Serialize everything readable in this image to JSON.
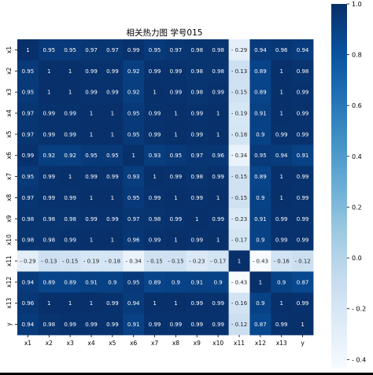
{
  "chart_data": {
    "type": "heatmap",
    "title": "相关热力图 学号015",
    "labels": [
      "x1",
      "x2",
      "x3",
      "x4",
      "x5",
      "x6",
      "x7",
      "x8",
      "x9",
      "x10",
      "x11",
      "x12",
      "x13",
      "y"
    ],
    "matrix": [
      [
        1,
        0.95,
        0.95,
        0.97,
        0.97,
        0.99,
        0.95,
        0.97,
        0.98,
        0.98,
        -0.29,
        0.94,
        0.96,
        0.94
      ],
      [
        0.95,
        1,
        1,
        0.99,
        0.99,
        0.92,
        0.99,
        0.99,
        0.98,
        0.98,
        -0.13,
        0.89,
        1,
        0.98
      ],
      [
        0.95,
        1,
        1,
        0.99,
        0.99,
        0.92,
        1,
        0.99,
        0.98,
        0.99,
        -0.15,
        0.89,
        1,
        0.99
      ],
      [
        0.97,
        0.99,
        0.99,
        1,
        1,
        0.95,
        0.99,
        1,
        0.99,
        1,
        -0.19,
        0.91,
        1,
        0.99
      ],
      [
        0.97,
        0.99,
        0.99,
        1,
        1,
        0.95,
        0.99,
        1,
        0.99,
        1,
        -0.18,
        0.9,
        0.99,
        0.99
      ],
      [
        0.99,
        0.92,
        0.92,
        0.95,
        0.95,
        1,
        0.93,
        0.95,
        0.97,
        0.96,
        -0.34,
        0.95,
        0.94,
        0.91
      ],
      [
        0.95,
        0.99,
        1,
        0.99,
        0.99,
        0.93,
        1,
        0.99,
        0.98,
        0.99,
        -0.15,
        0.89,
        1,
        0.99
      ],
      [
        0.97,
        0.99,
        0.99,
        1,
        1,
        0.95,
        0.99,
        1,
        0.99,
        1,
        -0.15,
        0.9,
        1,
        0.99
      ],
      [
        0.98,
        0.98,
        0.98,
        0.99,
        0.99,
        0.97,
        0.98,
        0.99,
        1,
        0.99,
        -0.23,
        0.91,
        0.99,
        0.99
      ],
      [
        0.98,
        0.98,
        0.99,
        1,
        1,
        0.96,
        0.99,
        1,
        0.99,
        1,
        -0.17,
        0.9,
        0.99,
        0.99
      ],
      [
        -0.29,
        -0.13,
        -0.15,
        -0.19,
        -0.18,
        -0.34,
        -0.15,
        -0.15,
        -0.23,
        -0.17,
        1,
        -0.43,
        -0.16,
        -0.12
      ],
      [
        0.94,
        0.89,
        0.89,
        0.91,
        0.9,
        0.95,
        0.89,
        0.9,
        0.91,
        0.9,
        -0.43,
        1,
        0.9,
        0.87
      ],
      [
        0.96,
        1,
        1,
        1,
        0.99,
        0.94,
        1,
        1,
        0.99,
        0.99,
        -0.16,
        0.9,
        1,
        0.99
      ],
      [
        0.94,
        0.98,
        0.99,
        0.99,
        0.99,
        0.91,
        0.99,
        0.99,
        0.99,
        0.99,
        -0.12,
        0.87,
        0.99,
        1
      ]
    ],
    "vmin": -0.43,
    "vmax": 1.0,
    "colormap": "Blues",
    "colorbar_ticks": [
      1.0,
      0.8,
      0.6,
      0.4,
      0.2,
      0.0,
      -0.2,
      -0.4
    ]
  }
}
